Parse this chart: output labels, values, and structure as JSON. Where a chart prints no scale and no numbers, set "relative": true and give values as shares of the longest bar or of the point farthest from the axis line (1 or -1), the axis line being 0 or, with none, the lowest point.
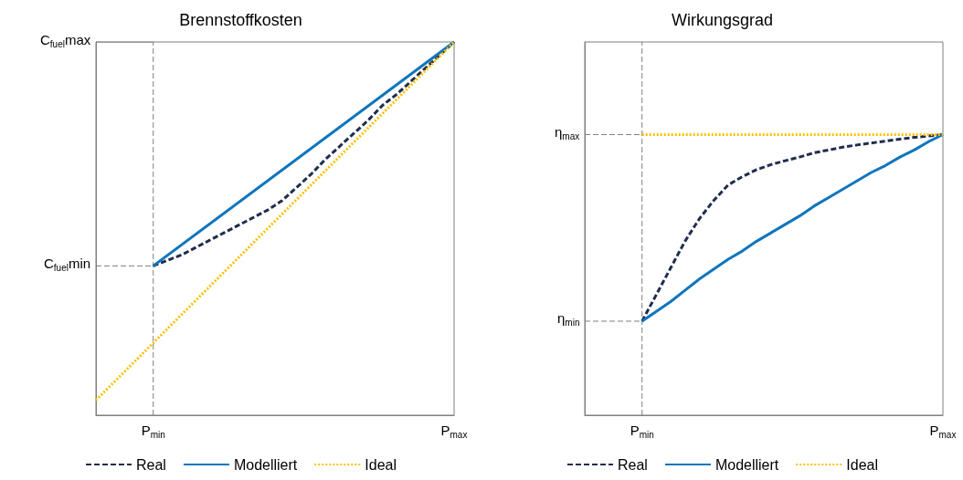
{
  "chart_data": [
    {
      "type": "line",
      "title": "Brennstoffkosten",
      "relative": true,
      "tick_labels": "x",
      "grid": false,
      "legend": "bottom",
      "marker": "none",
      "categories": [
        null,
        null,
        null,
        null,
        "P$_{min}$",
        null,
        null,
        null,
        null,
        null,
        null,
        null,
        null,
        null,
        null,
        null,
        null,
        null,
        null,
        null,
        null,
        null,
        null,
        null,
        null,
        "P$_{max}$"
      ],
      "ref_lines": [
        {
          "axis": "x",
          "value": "P$_{min}$",
          "color": "#7f7f7f",
          "line_style": "dashed"
        },
        {
          "axis": "y",
          "value": 0.4,
          "label": "C$_{fuel}$min",
          "color": "#7f7f7f",
          "line_style": "dashed"
        },
        {
          "axis": "y",
          "value": 1,
          "label": "C$_{fuel}$max",
          "color": "#7f7f7f",
          "line_style": "solid"
        }
      ],
      "series": [
        {
          "name": "Real",
          "color": "#1f2d4e",
          "line_style": "dashed",
          "values": [
            null,
            null,
            null,
            null,
            0.4,
            0.415,
            0.43,
            0.45,
            0.47,
            0.49,
            0.51,
            0.53,
            0.55,
            0.575,
            0.61,
            0.645,
            0.685,
            0.72,
            0.755,
            0.79,
            0.83,
            0.86,
            0.895,
            0.93,
            0.965,
            1
          ]
        },
        {
          "name": "Modelliert",
          "color": "#0f75bc",
          "line_style": "solid",
          "values": [
            null,
            null,
            null,
            null,
            0.4,
            null,
            null,
            null,
            null,
            null,
            null,
            null,
            null,
            null,
            null,
            null,
            null,
            null,
            null,
            null,
            null,
            null,
            null,
            null,
            null,
            1
          ]
        },
        {
          "name": "Ideal",
          "color": "#ffc000",
          "line_style": "dotted",
          "values": [
            0.04,
            null,
            null,
            null,
            null,
            null,
            null,
            null,
            null,
            null,
            null,
            null,
            null,
            null,
            null,
            null,
            null,
            null,
            null,
            null,
            null,
            null,
            null,
            null,
            null,
            1
          ]
        }
      ]
    },
    {
      "type": "line",
      "title": "Wirkungsgrad",
      "relative": true,
      "tick_labels": "x",
      "grid": false,
      "legend": "bottom",
      "marker": "none",
      "categories": [
        null,
        null,
        null,
        null,
        "P$_{min}$",
        null,
        null,
        null,
        null,
        null,
        null,
        null,
        null,
        null,
        null,
        null,
        null,
        null,
        null,
        null,
        null,
        null,
        null,
        null,
        null,
        "P$_{max}$"
      ],
      "ref_lines": [
        {
          "axis": "x",
          "value": "P$_{min}$",
          "color": "#7f7f7f",
          "line_style": "dashed"
        },
        {
          "axis": "y",
          "value": 1,
          "label": "η$_{max}$",
          "color": "#7f7f7f",
          "line_style": "dashed"
        },
        {
          "axis": "y",
          "value": 0.335,
          "label": "η$_{min}$",
          "color": "#7f7f7f",
          "line_style": "dashed"
        }
      ],
      "series": [
        {
          "name": "Real",
          "color": "#1f2d4e",
          "line_style": "dashed",
          "values": [
            null,
            null,
            null,
            null,
            0.335,
            0.43,
            0.525,
            0.62,
            0.7,
            0.765,
            0.82,
            0.85,
            0.875,
            0.893,
            0.907,
            0.92,
            0.935,
            0.945,
            0.955,
            0.963,
            0.97,
            0.977,
            0.984,
            0.99,
            0.995,
            1
          ]
        },
        {
          "name": "Modelliert",
          "color": "#0f75bc",
          "line_style": "solid",
          "values": [
            null,
            null,
            null,
            null,
            0.335,
            0.37,
            0.405,
            0.445,
            0.485,
            0.52,
            0.555,
            0.585,
            0.62,
            0.65,
            0.68,
            0.71,
            0.745,
            0.775,
            0.805,
            0.835,
            0.865,
            0.89,
            0.92,
            0.945,
            0.975,
            1
          ]
        },
        {
          "name": "Ideal",
          "color": "#ffc000",
          "line_style": "dotted",
          "values": [
            null,
            null,
            null,
            null,
            1,
            null,
            null,
            null,
            null,
            null,
            null,
            null,
            null,
            null,
            null,
            null,
            null,
            null,
            null,
            null,
            null,
            null,
            null,
            null,
            null,
            1
          ]
        }
      ]
    }
  ]
}
